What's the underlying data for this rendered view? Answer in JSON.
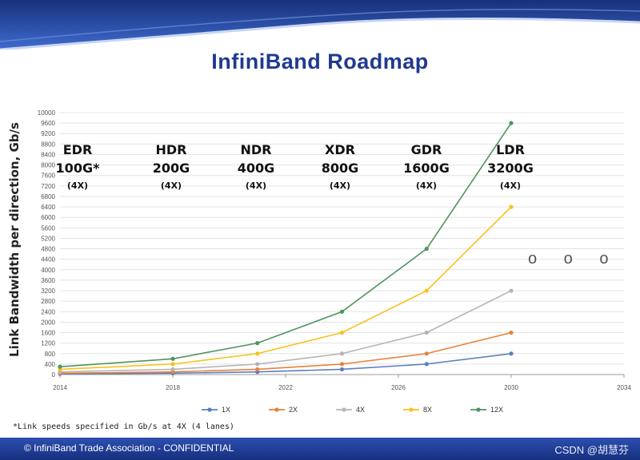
{
  "chart_data": {
    "type": "line",
    "title": "InfiniBand Roadmap",
    "ylabel": "Link Bandwidth per direction, Gb/s",
    "xlabel": "",
    "xlim": [
      2014,
      2034
    ],
    "ylim": [
      0,
      10000
    ],
    "xticks": [
      2014,
      2018,
      2022,
      2026,
      2030,
      2034
    ],
    "yticks": [
      0,
      400,
      800,
      1200,
      1600,
      2000,
      2400,
      2800,
      3200,
      3600,
      4000,
      4400,
      4800,
      5200,
      5600,
      6000,
      6400,
      6800,
      7200,
      7600,
      8000,
      8400,
      8800,
      9200,
      9600,
      10000
    ],
    "x": [
      2014,
      2018,
      2021,
      2024,
      2027,
      2030
    ],
    "series": [
      {
        "name": "1X",
        "color": "#5b7fbd",
        "values": [
          25,
          50,
          100,
          200,
          400,
          800
        ]
      },
      {
        "name": "2X",
        "color": "#e8813a",
        "values": [
          50,
          100,
          200,
          400,
          800,
          1600
        ]
      },
      {
        "name": "4X",
        "color": "#b4b4b4",
        "values": [
          100,
          200,
          400,
          800,
          1600,
          3200
        ]
      },
      {
        "name": "8X",
        "color": "#f7c21a",
        "values": [
          200,
          400,
          800,
          1600,
          3200,
          6400
        ]
      },
      {
        "name": "12X",
        "color": "#4f9460",
        "values": [
          300,
          600,
          1200,
          2400,
          4800,
          9600
        ]
      }
    ],
    "legend": "bottom",
    "grid": true
  },
  "generations": [
    {
      "name": "EDR",
      "speed": "100G*",
      "lanes": "(4X)"
    },
    {
      "name": "HDR",
      "speed": "200G",
      "lanes": "(4X)"
    },
    {
      "name": "NDR",
      "speed": "400G",
      "lanes": "(4X)"
    },
    {
      "name": "XDR",
      "speed": "800G",
      "lanes": "(4X)"
    },
    {
      "name": "GDR",
      "speed": "1600G",
      "lanes": "(4X)"
    },
    {
      "name": "LDR",
      "speed": "3200G",
      "lanes": "(4X)"
    }
  ],
  "ellipsis": "o o o",
  "footnote": "*Link speeds specified in Gb/s at 4X (4 lanes)",
  "footer": "© InfiniBand Trade Association - CONFIDENTIAL",
  "watermark": "CSDN @胡慧芬"
}
